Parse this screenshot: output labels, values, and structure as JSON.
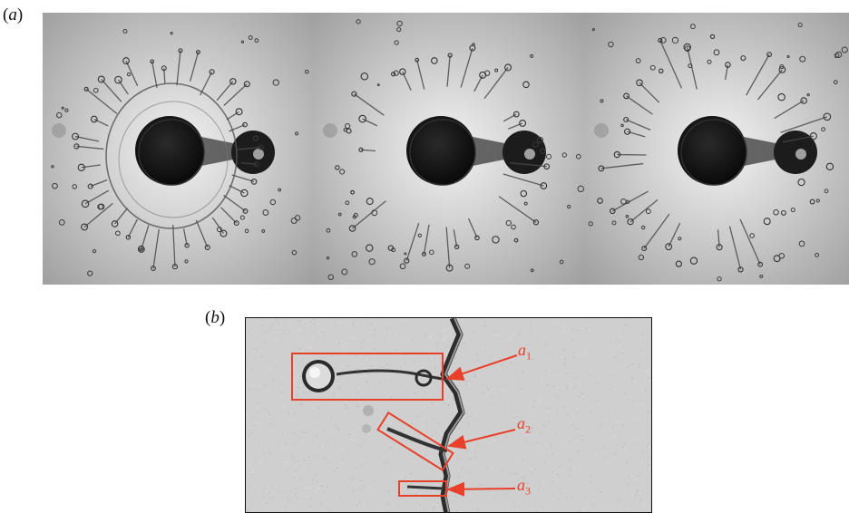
{
  "figure": {
    "panel_a_label": "a",
    "panel_b_label": "b",
    "annotations": [
      {
        "letter": "a",
        "index": "1"
      },
      {
        "letter": "a",
        "index": "2"
      },
      {
        "letter": "a",
        "index": "3"
      }
    ]
  },
  "colors": {
    "annotation": "#e8402a",
    "background": "#c9c9c9",
    "droplet": "#1a1a1a"
  }
}
